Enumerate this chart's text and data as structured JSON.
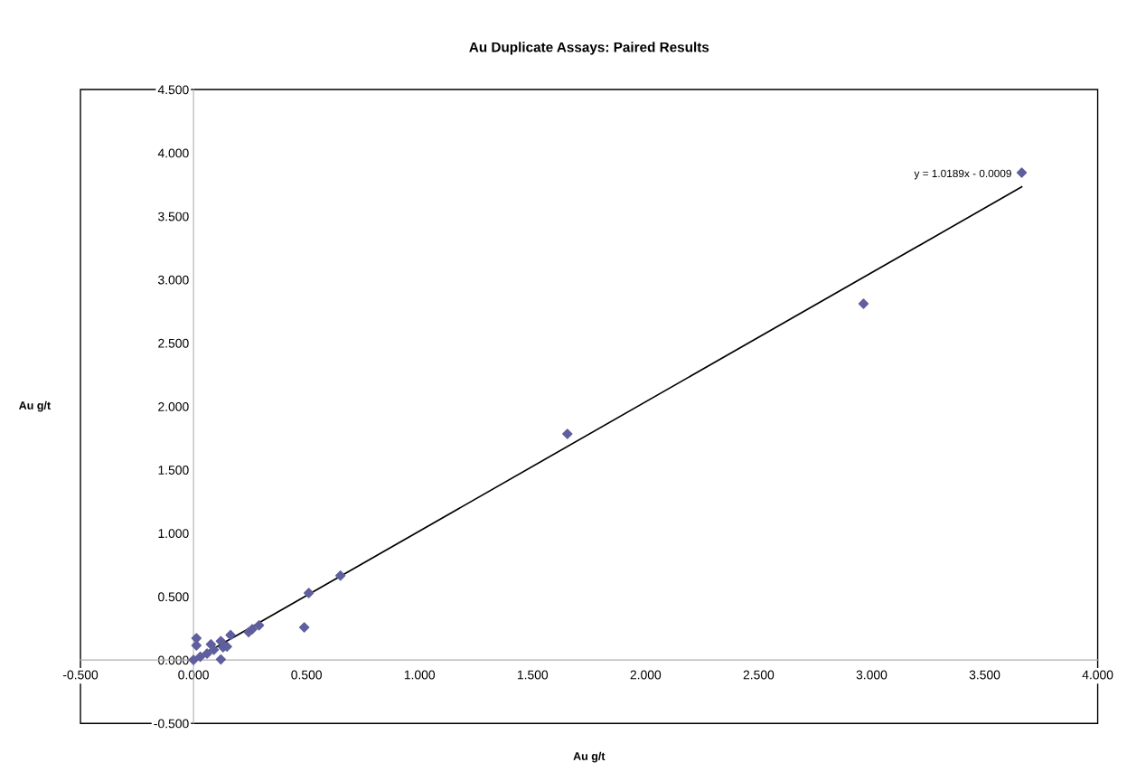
{
  "chart_data": {
    "type": "scatter",
    "title": "Au Duplicate Assays: Paired Results",
    "xlabel": "Au g/t",
    "ylabel": "Au g/t",
    "xlim": [
      -0.5,
      4.0
    ],
    "ylim": [
      -0.5,
      4.5
    ],
    "xticks": [
      {
        "value": -0.5,
        "label": "-0.500"
      },
      {
        "value": 0,
        "label": "0.000"
      },
      {
        "value": 0.5,
        "label": "0.500"
      },
      {
        "value": 1.0,
        "label": "1.000"
      },
      {
        "value": 1.5,
        "label": "1.500"
      },
      {
        "value": 2.0,
        "label": "2.000"
      },
      {
        "value": 2.5,
        "label": "2.500"
      },
      {
        "value": 3.0,
        "label": "3.000"
      },
      {
        "value": 3.5,
        "label": "3.500"
      },
      {
        "value": 4.0,
        "label": "4.000"
      }
    ],
    "yticks": [
      {
        "value": -0.5,
        "label": "-0.500"
      },
      {
        "value": 0,
        "label": "0.000"
      },
      {
        "value": 0.5,
        "label": "0.500"
      },
      {
        "value": 1.0,
        "label": "1.000"
      },
      {
        "value": 1.5,
        "label": "1.500"
      },
      {
        "value": 2.0,
        "label": "2.000"
      },
      {
        "value": 2.5,
        "label": "2.500"
      },
      {
        "value": 3.0,
        "label": "3.000"
      },
      {
        "value": 3.5,
        "label": "3.500"
      },
      {
        "value": 4.0,
        "label": "4.000"
      },
      {
        "value": 4.5,
        "label": "4.500"
      }
    ],
    "grid": false,
    "legend": false,
    "marker": "diamond",
    "series": [
      {
        "color": "#5f5f9e",
        "x": [
          0.0,
          0.03,
          0.06,
          0.09,
          0.013,
          0.013,
          0.121,
          0.121,
          0.164,
          0.077,
          0.131,
          0.148,
          0.244,
          0.26,
          0.29,
          0.49,
          0.51,
          0.65,
          1.654,
          2.964,
          3.664
        ],
        "values": [
          0.0,
          0.025,
          0.05,
          0.08,
          0.171,
          0.114,
          0.148,
          0.005,
          0.197,
          0.123,
          0.1,
          0.105,
          0.219,
          0.243,
          0.273,
          0.257,
          0.528,
          0.666,
          1.783,
          2.81,
          3.845
        ]
      },
      {
        "type": "line",
        "color": "#000000",
        "marker": "none",
        "x": [
          0.0,
          3.664
        ],
        "values": [
          -0.001,
          3.732
        ]
      }
    ],
    "annotations": [
      {
        "text": "y = 1.0189x - 0.0009",
        "x": 3.664,
        "y": 3.732
      }
    ]
  }
}
